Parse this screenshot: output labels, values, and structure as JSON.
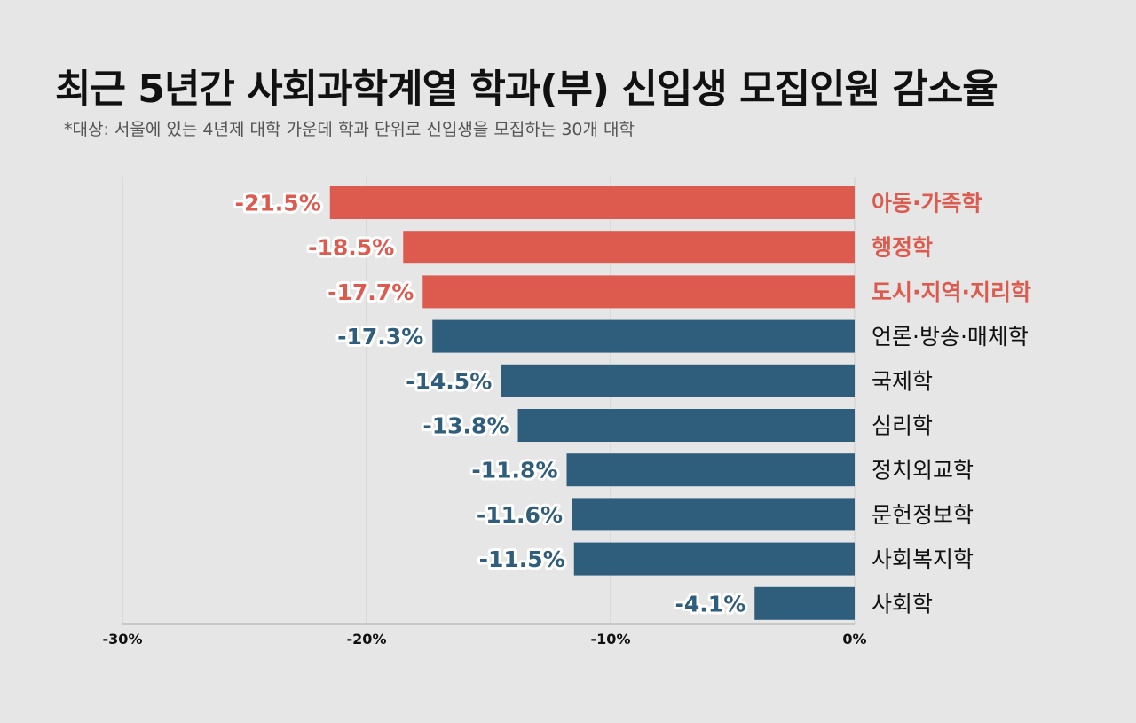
{
  "title": "최근 5년간 사회과학계열 학과(부) 신입생 모집인원 감소율",
  "subtitle": "*대상: 서울에 있는 4년제 대학 가운데 학과 단위로 신입생을 모집하는 30개 대학",
  "colors": {
    "highlight": "#dd5a4e",
    "normal": "#2f5d7c",
    "grid": "#cfcfcf",
    "axis": "#bdbdbd",
    "category_text": "#111111"
  },
  "chart_data": {
    "type": "bar",
    "orientation": "horizontal",
    "categories": [
      "아동·가족학",
      "행정학",
      "도시·지역·지리학",
      "언론·방송·매체학",
      "국제학",
      "심리학",
      "정치외교학",
      "문헌정보학",
      "사회복지학",
      "사회학"
    ],
    "values": [
      -21.5,
      -18.5,
      -17.7,
      -17.3,
      -14.5,
      -13.8,
      -11.8,
      -11.6,
      -11.5,
      -4.1
    ],
    "value_labels": [
      "-21.5%",
      "-18.5%",
      "-17.7%",
      "-17.3%",
      "-14.5%",
      "-13.8%",
      "-11.8%",
      "-11.6%",
      "-11.5%",
      "-4.1%"
    ],
    "highlighted": [
      true,
      true,
      true,
      false,
      false,
      false,
      false,
      false,
      false,
      false
    ],
    "xlim": [
      -30,
      0
    ],
    "xticks": [
      -30,
      -20,
      -10,
      0
    ],
    "xtick_labels": [
      "-30%",
      "-20%",
      "-10%",
      "0%"
    ],
    "grid": true
  }
}
